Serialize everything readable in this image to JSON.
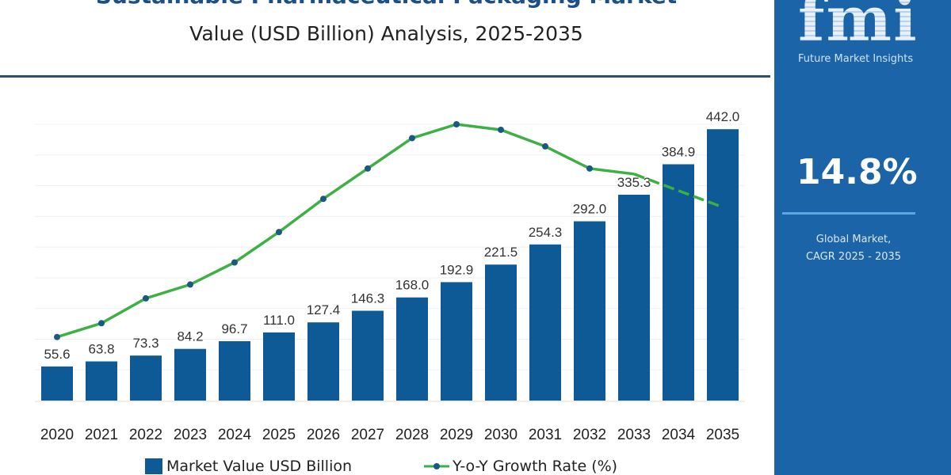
{
  "header": {
    "title": "Sustainable Pharmaceutical Packaging Market",
    "subtitle": "Value (USD Billion) Analysis, 2025-2035"
  },
  "panel": {
    "logo_text": "fmi",
    "logo_caption": "Future Market Insights",
    "cagr_value": "14.8%",
    "cagr_label_line1": "Global Market,",
    "cagr_label_line2": "CAGR 2025 - 2035",
    "background_color": "#1c64a8"
  },
  "legend": {
    "bar_label": "Market Value USD Billion",
    "line_label": "Y-o-Y Growth Rate (%)"
  },
  "chart_data": {
    "type": "bar",
    "categories": [
      "2020",
      "2021",
      "2022",
      "2023",
      "2024",
      "2025",
      "2026",
      "2027",
      "2028",
      "2029",
      "2030",
      "2031",
      "2032",
      "2033",
      "2034",
      "2035"
    ],
    "series": [
      {
        "name": "Market Value USD Billion",
        "type": "bar",
        "color": "#0d5a96",
        "values": [
          55.6,
          63.8,
          73.3,
          84.2,
          96.7,
          111.0,
          127.4,
          146.3,
          168.0,
          192.9,
          221.5,
          254.3,
          292.0,
          335.3,
          384.9,
          442.0
        ],
        "labels": [
          "55.6",
          "63.8",
          "73.3",
          "84.2",
          "96.7",
          "111.0",
          "127.4",
          "146.3",
          "168.0",
          "192.9",
          "221.5",
          "254.3",
          "292.0",
          "335.3",
          "384.9",
          "442.0"
        ]
      },
      {
        "name": "Y-o-Y Growth Rate (%)",
        "type": "line",
        "color": "#3cb043",
        "marker_color": "#1a5a80",
        "values_relative_estimate": [
          23,
          28,
          37,
          42,
          50,
          61,
          73,
          84,
          95,
          100,
          98,
          92,
          84,
          82,
          76,
          70
        ],
        "dashed_from": "2033"
      }
    ],
    "ylim": [
      0,
      450
    ],
    "grid": true,
    "legend_position": "bottom"
  }
}
